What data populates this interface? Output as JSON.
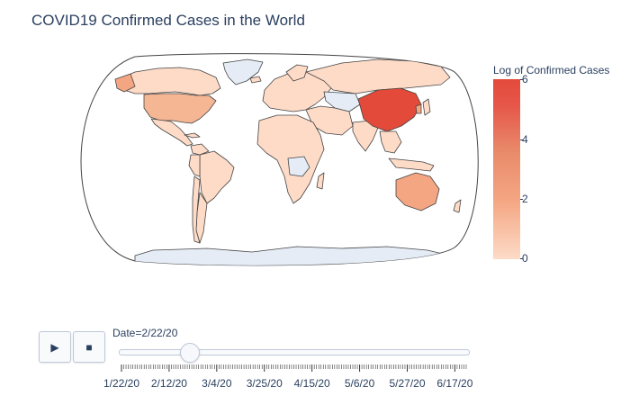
{
  "title": "COVID19 Confirmed Cases in the World",
  "colorbar": {
    "title": "Log of Confirmed Cases",
    "ticks": [
      "6",
      "4",
      "2",
      "0"
    ]
  },
  "animation": {
    "play_icon": "play-icon",
    "stop_icon": "stop-icon",
    "current_label": "Date=2/22/20",
    "current_fraction": 0.2,
    "tick_labels": [
      "1/22/20",
      "2/12/20",
      "3/4/20",
      "3/25/20",
      "4/15/20",
      "5/6/20",
      "5/27/20",
      "6/17/20"
    ]
  },
  "colors": {
    "no_data": "#e5ecf6",
    "low": "#fddbc7",
    "mid": "#f4a582",
    "high": "#e34a3a",
    "border": "#444444"
  }
}
